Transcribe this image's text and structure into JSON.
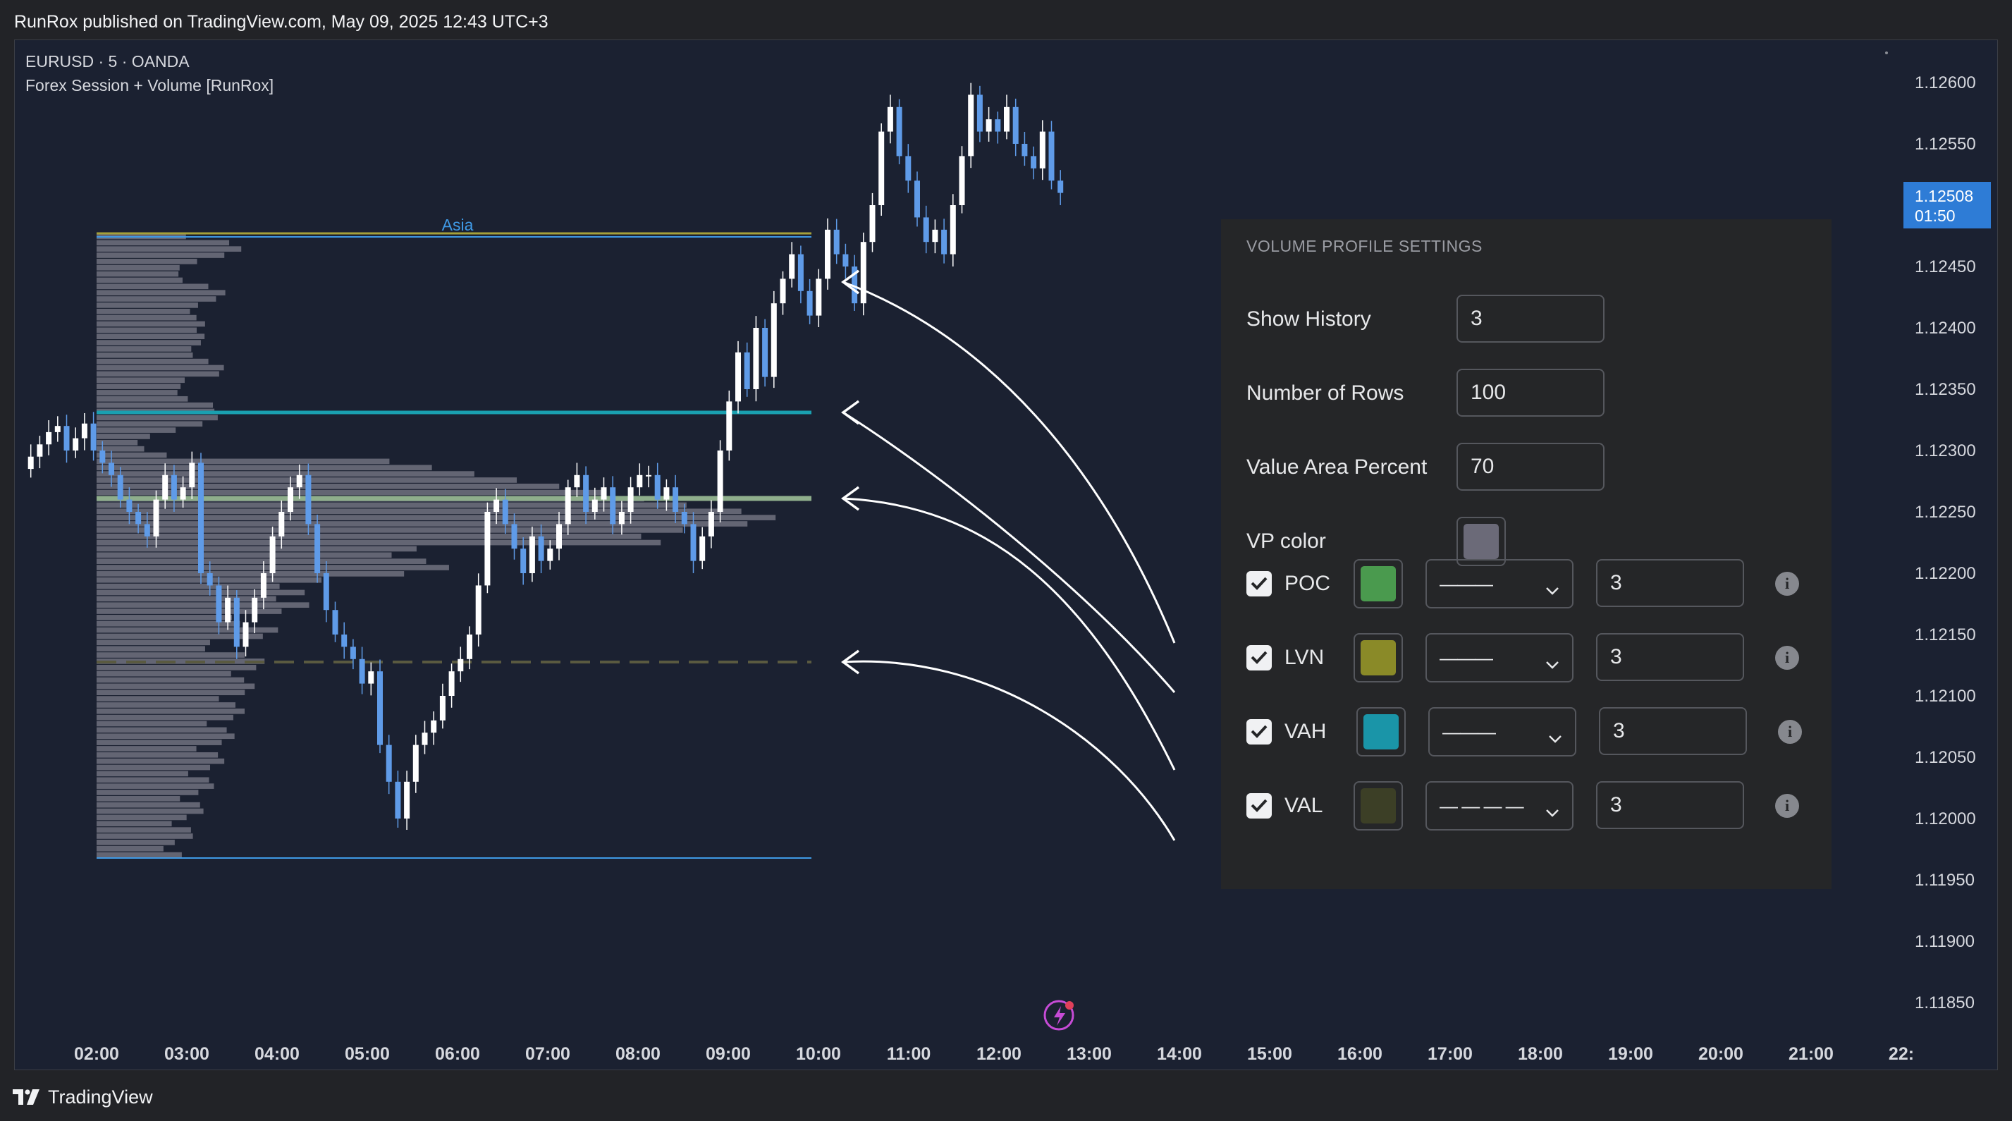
{
  "publication": "RunRox published on TradingView.com, May 09, 2025 12:43 UTC+3",
  "legend": {
    "symbol_line": "EURUSD · 5 · OANDA",
    "indicator": "Forex Session + Volume [RunRox]"
  },
  "price_axis": {
    "labels": [
      "1.12600",
      "1.12550",
      "1.12450",
      "1.12400",
      "1.12350",
      "1.12300",
      "1.12250",
      "1.12200",
      "1.12150",
      "1.12100",
      "1.12050",
      "1.12000",
      "1.11950",
      "1.11900",
      "1.11850"
    ],
    "last_price": "1.12508",
    "countdown": "01:50"
  },
  "time_axis": {
    "labels": [
      "02:00",
      "03:00",
      "04:00",
      "05:00",
      "06:00",
      "07:00",
      "08:00",
      "09:00",
      "10:00",
      "11:00",
      "12:00",
      "13:00",
      "14:00",
      "15:00",
      "16:00",
      "17:00",
      "18:00",
      "19:00",
      "20:00",
      "21:00",
      "22:"
    ]
  },
  "session": {
    "label": "Asia"
  },
  "settings_panel": {
    "title": "VOLUME PROFILE SETTINGS",
    "fields": [
      {
        "label": "Show History",
        "value": "3"
      },
      {
        "label": "Number of Rows",
        "value": "100"
      },
      {
        "label": "Value Area Percent",
        "value": "70"
      }
    ],
    "vp_color": {
      "label": "VP color",
      "color": "#6b6a78"
    },
    "lines": [
      {
        "label": "POC",
        "checked": true,
        "color": "#4a9a4e",
        "style": "———",
        "width": "3"
      },
      {
        "label": "LVN",
        "checked": true,
        "color": "#8a8a28",
        "style": "———",
        "width": "3"
      },
      {
        "label": "VAH",
        "checked": true,
        "color": "#1a95a8",
        "style": "———",
        "width": "3"
      },
      {
        "label": "VAL",
        "checked": true,
        "color": "#3c3f26",
        "style": "— — — —",
        "width": "3"
      }
    ]
  },
  "footer": {
    "brand": "TradingView"
  },
  "colors": {
    "background": "#1b2131",
    "bull_candle": "#ffffff",
    "bear_candle": "#5f9be8",
    "poc_line": "#8fae8c",
    "vah_line": "#1aa0b0",
    "val_line": "#5a5a40",
    "session_line": "#3f9ae6",
    "profile_fill": "#7f7f8e"
  }
}
